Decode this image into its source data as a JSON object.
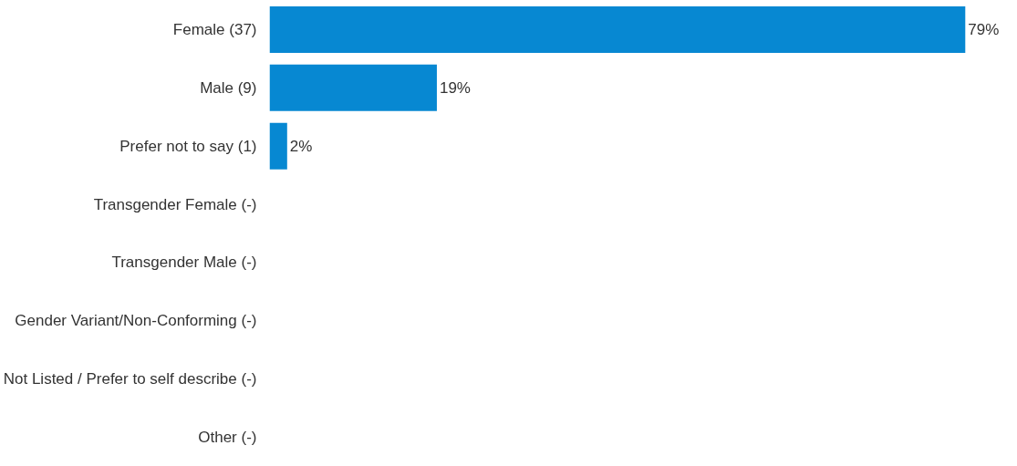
{
  "chart_data": {
    "type": "bar",
    "orientation": "horizontal",
    "categories": [
      "Female (37)",
      "Male (9)",
      "Prefer not to say (1)",
      "Transgender Female (-)",
      "Transgender Male (-)",
      "Gender Variant/Non-Conforming (-)",
      "Not Listed / Prefer to self describe (-)",
      "Other (-)"
    ],
    "values": [
      79,
      19,
      2,
      null,
      null,
      null,
      null,
      null
    ],
    "value_labels": [
      "79%",
      "19%",
      "2%",
      null,
      null,
      null,
      null,
      null
    ],
    "color": "#0788d2"
  }
}
